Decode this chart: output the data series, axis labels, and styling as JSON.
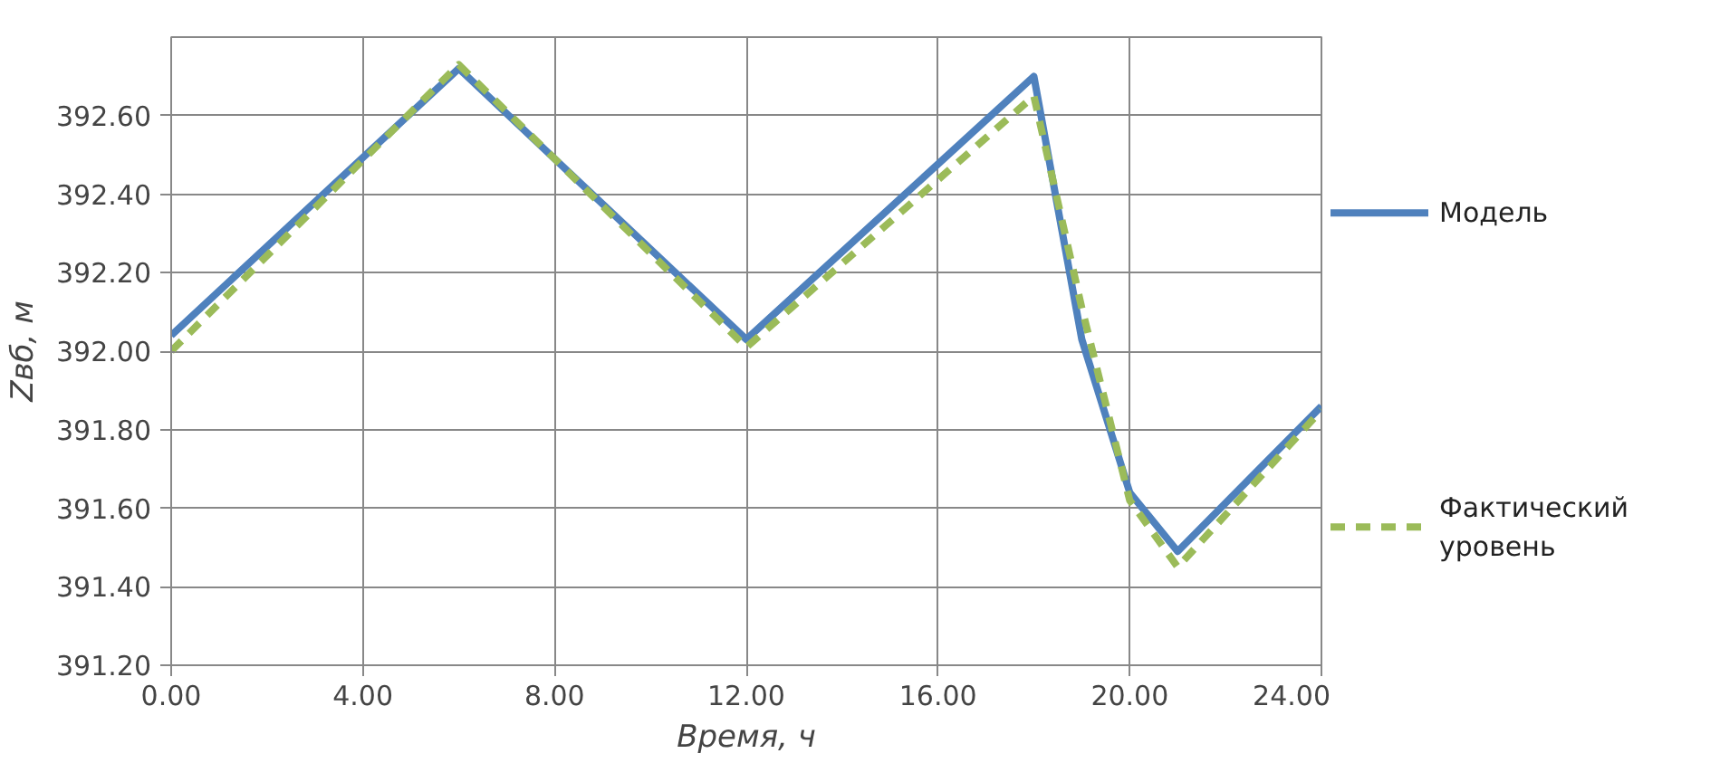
{
  "chart_data": {
    "type": "line",
    "xlabel": "Время, ч",
    "ylabel": "Zвб, м",
    "x": [
      0,
      6,
      12,
      18,
      19,
      20,
      21,
      24
    ],
    "series": [
      {
        "name": "Модель",
        "color": "#4f81bd",
        "line_style": "solid",
        "values": [
          392.04,
          392.72,
          392.03,
          392.7,
          392.03,
          391.64,
          391.49,
          391.86
        ]
      },
      {
        "name": "Фактический уровень",
        "color": "#9bbb59",
        "line_style": "dashed",
        "values": [
          392.0,
          392.73,
          392.01,
          392.65,
          392.11,
          391.62,
          391.45,
          391.85
        ]
      }
    ],
    "xlim": [
      0,
      24
    ],
    "xticks": [
      {
        "value": 0,
        "label": "0.00"
      },
      {
        "value": 4,
        "label": "4.00"
      },
      {
        "value": 8,
        "label": "8.00"
      },
      {
        "value": 12,
        "label": "12.00"
      },
      {
        "value": 16,
        "label": "16.00"
      },
      {
        "value": 20,
        "label": "20.00"
      },
      {
        "value": 24,
        "label": "24.00"
      }
    ],
    "ylim": [
      391.2,
      392.8
    ],
    "yticks": [
      {
        "value": 391.2,
        "label": "391.20"
      },
      {
        "value": 391.4,
        "label": "391.40"
      },
      {
        "value": 391.6,
        "label": "391.60"
      },
      {
        "value": 391.8,
        "label": "391.80"
      },
      {
        "value": 392.0,
        "label": "392.00"
      },
      {
        "value": 392.2,
        "label": "392.20"
      },
      {
        "value": 392.4,
        "label": "392.40"
      },
      {
        "value": 392.6,
        "label": "392.60"
      }
    ],
    "grid": true,
    "legend": "right",
    "marker": "none"
  }
}
